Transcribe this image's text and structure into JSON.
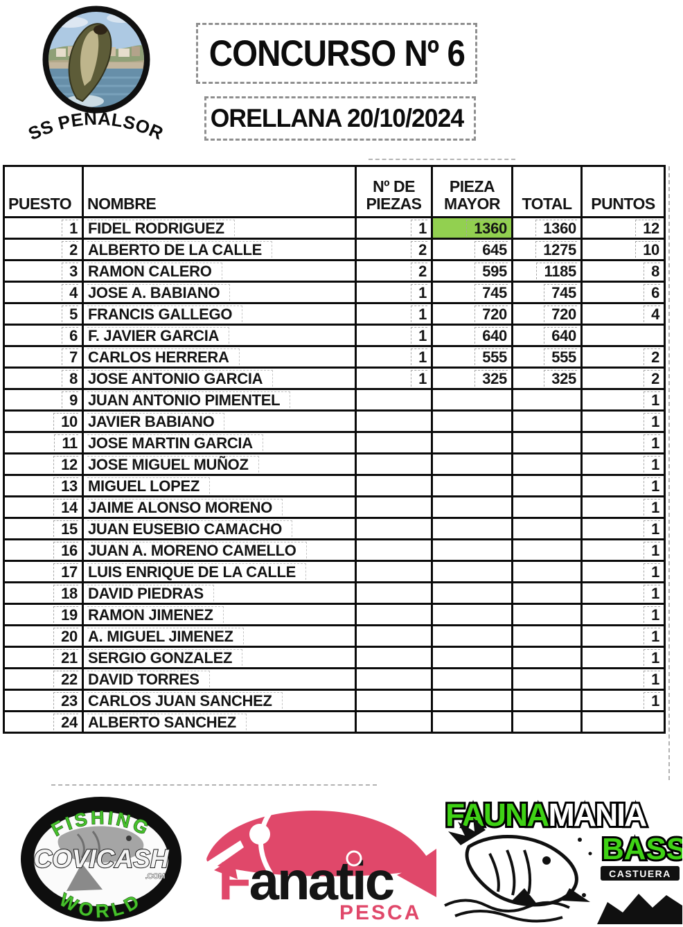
{
  "header": {
    "club_name": "BASS PEÑALSORDO",
    "title": "CONCURSO Nº 6",
    "subtitle": "ORELLANA 20/10/2024"
  },
  "table": {
    "highlight_color": "#92d050",
    "columns": [
      "PUESTO",
      "NOMBRE",
      "Nº DE\nPIEZAS",
      "PIEZA\nMAYOR",
      "TOTAL",
      "PUNTOS"
    ],
    "rows": [
      {
        "puesto": "1",
        "nombre": "FIDEL RODRIGUEZ",
        "piezas": "1",
        "pieza_mayor": "1360",
        "total": "1360",
        "puntos": "12",
        "pieza_mayor_highlight": true
      },
      {
        "puesto": "2",
        "nombre": "ALBERTO DE LA CALLE",
        "piezas": "2",
        "pieza_mayor": "645",
        "total": "1275",
        "puntos": "10"
      },
      {
        "puesto": "3",
        "nombre": "RAMON CALERO",
        "piezas": "2",
        "pieza_mayor": "595",
        "total": "1185",
        "puntos": "8"
      },
      {
        "puesto": "4",
        "nombre": "JOSE A. BABIANO",
        "piezas": "1",
        "pieza_mayor": "745",
        "total": "745",
        "puntos": "6"
      },
      {
        "puesto": "5",
        "nombre": "FRANCIS GALLEGO",
        "piezas": "1",
        "pieza_mayor": "720",
        "total": "720",
        "puntos": "4"
      },
      {
        "puesto": "6",
        "nombre": "F. JAVIER GARCIA",
        "piezas": "1",
        "pieza_mayor": "640",
        "total": "640",
        "puntos": ""
      },
      {
        "puesto": "7",
        "nombre": "CARLOS HERRERA",
        "piezas": "1",
        "pieza_mayor": "555",
        "total": "555",
        "puntos": "2"
      },
      {
        "puesto": "8",
        "nombre": "JOSE ANTONIO GARCIA",
        "piezas": "1",
        "pieza_mayor": "325",
        "total": "325",
        "puntos": "2"
      },
      {
        "puesto": "9",
        "nombre": "JUAN ANTONIO PIMENTEL",
        "piezas": "",
        "pieza_mayor": "",
        "total": "",
        "puntos": "1"
      },
      {
        "puesto": "10",
        "nombre": "JAVIER BABIANO",
        "piezas": "",
        "pieza_mayor": "",
        "total": "",
        "puntos": "1"
      },
      {
        "puesto": "11",
        "nombre": "JOSE MARTIN GARCIA",
        "piezas": "",
        "pieza_mayor": "",
        "total": "",
        "puntos": "1"
      },
      {
        "puesto": "12",
        "nombre": "JOSE MIGUEL MUÑOZ",
        "piezas": "",
        "pieza_mayor": "",
        "total": "",
        "puntos": "1"
      },
      {
        "puesto": "13",
        "nombre": "MIGUEL LOPEZ",
        "piezas": "",
        "pieza_mayor": "",
        "total": "",
        "puntos": "1"
      },
      {
        "puesto": "14",
        "nombre": "JAIME ALONSO MORENO",
        "piezas": "",
        "pieza_mayor": "",
        "total": "",
        "puntos": "1"
      },
      {
        "puesto": "15",
        "nombre": "JUAN EUSEBIO CAMACHO",
        "piezas": "",
        "pieza_mayor": "",
        "total": "",
        "puntos": "1"
      },
      {
        "puesto": "16",
        "nombre": "JUAN A. MORENO CAMELLO",
        "piezas": "",
        "pieza_mayor": "",
        "total": "",
        "puntos": "1"
      },
      {
        "puesto": "17",
        "nombre": "LUIS ENRIQUE DE LA CALLE",
        "piezas": "",
        "pieza_mayor": "",
        "total": "",
        "puntos": "1"
      },
      {
        "puesto": "18",
        "nombre": "DAVID PIEDRAS",
        "piezas": "",
        "pieza_mayor": "",
        "total": "",
        "puntos": "1"
      },
      {
        "puesto": "19",
        "nombre": "RAMON JIMENEZ",
        "piezas": "",
        "pieza_mayor": "",
        "total": "",
        "puntos": "1"
      },
      {
        "puesto": "20",
        "nombre": "A. MIGUEL JIMENEZ",
        "piezas": "",
        "pieza_mayor": "",
        "total": "",
        "puntos": "1"
      },
      {
        "puesto": "21",
        "nombre": "SERGIO GONZALEZ",
        "piezas": "",
        "pieza_mayor": "",
        "total": "",
        "puntos": "1"
      },
      {
        "puesto": "22",
        "nombre": "DAVID TORRES",
        "piezas": "",
        "pieza_mayor": "",
        "total": "",
        "puntos": "1"
      },
      {
        "puesto": "23",
        "nombre": "CARLOS JUAN SANCHEZ",
        "piezas": "",
        "pieza_mayor": "",
        "total": "",
        "puntos": "1"
      },
      {
        "puesto": "24",
        "nombre": "ALBERTO SANCHEZ",
        "piezas": "",
        "pieza_mayor": "",
        "total": "",
        "puntos": ""
      }
    ]
  },
  "sponsors": {
    "covicash": {
      "arc_top": "FISHING",
      "name": "COVICASH",
      "domain": ".COM",
      "arc_bottom": "WORLD",
      "green": "#46c02b"
    },
    "fanatic": {
      "name_lead": "F",
      "name_rest": "anatic",
      "tagline": "PESCA",
      "pink": "#e0486a"
    },
    "faunamania": {
      "word_fauna": "FAUNA",
      "word_mania": "MANIA",
      "word_bass": "BASS",
      "word_castuera": "CASTUERA",
      "green": "#3fd215"
    }
  }
}
